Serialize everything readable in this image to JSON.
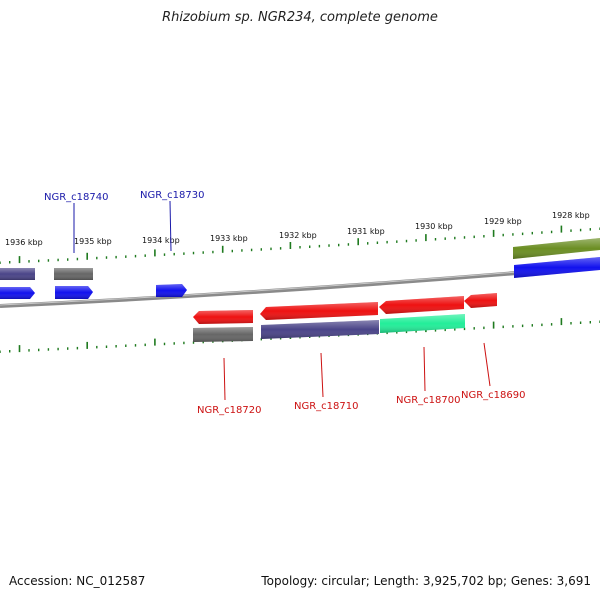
{
  "header": {
    "title": "Rhizobium sp. NGR234, complete genome"
  },
  "footer": {
    "accession": "Accession: NC_012587",
    "topology": "Topology: circular; Length: 3,925,702 bp; Genes: 3,691"
  },
  "colors": {
    "backbone": "#8a8a8a",
    "tick": "#1f7a1f",
    "plus_label": "#1a1aaa",
    "minus_label": "#cc1111",
    "gene_red": "#ee1111",
    "gene_blue": "#1111ee",
    "gene_grey": "#666666",
    "gene_purple": "#4a4488",
    "gene_teal": "#22ee99",
    "gene_olive": "#6b8e23"
  },
  "scale": {
    "unit_labels": [
      "1936 kbp",
      "1935 kbp",
      "1934 kbp",
      "1933 kbp",
      "1932 kbp",
      "1931 kbp",
      "1930 kbp",
      "1929 kbp",
      "1928 kbp"
    ]
  },
  "labels": {
    "plus": [
      "NGR_c18740",
      "NGR_c18730"
    ],
    "minus": [
      "NGR_c18720",
      "NGR_c18710",
      "NGR_c18700",
      "NGR_c18690"
    ]
  }
}
